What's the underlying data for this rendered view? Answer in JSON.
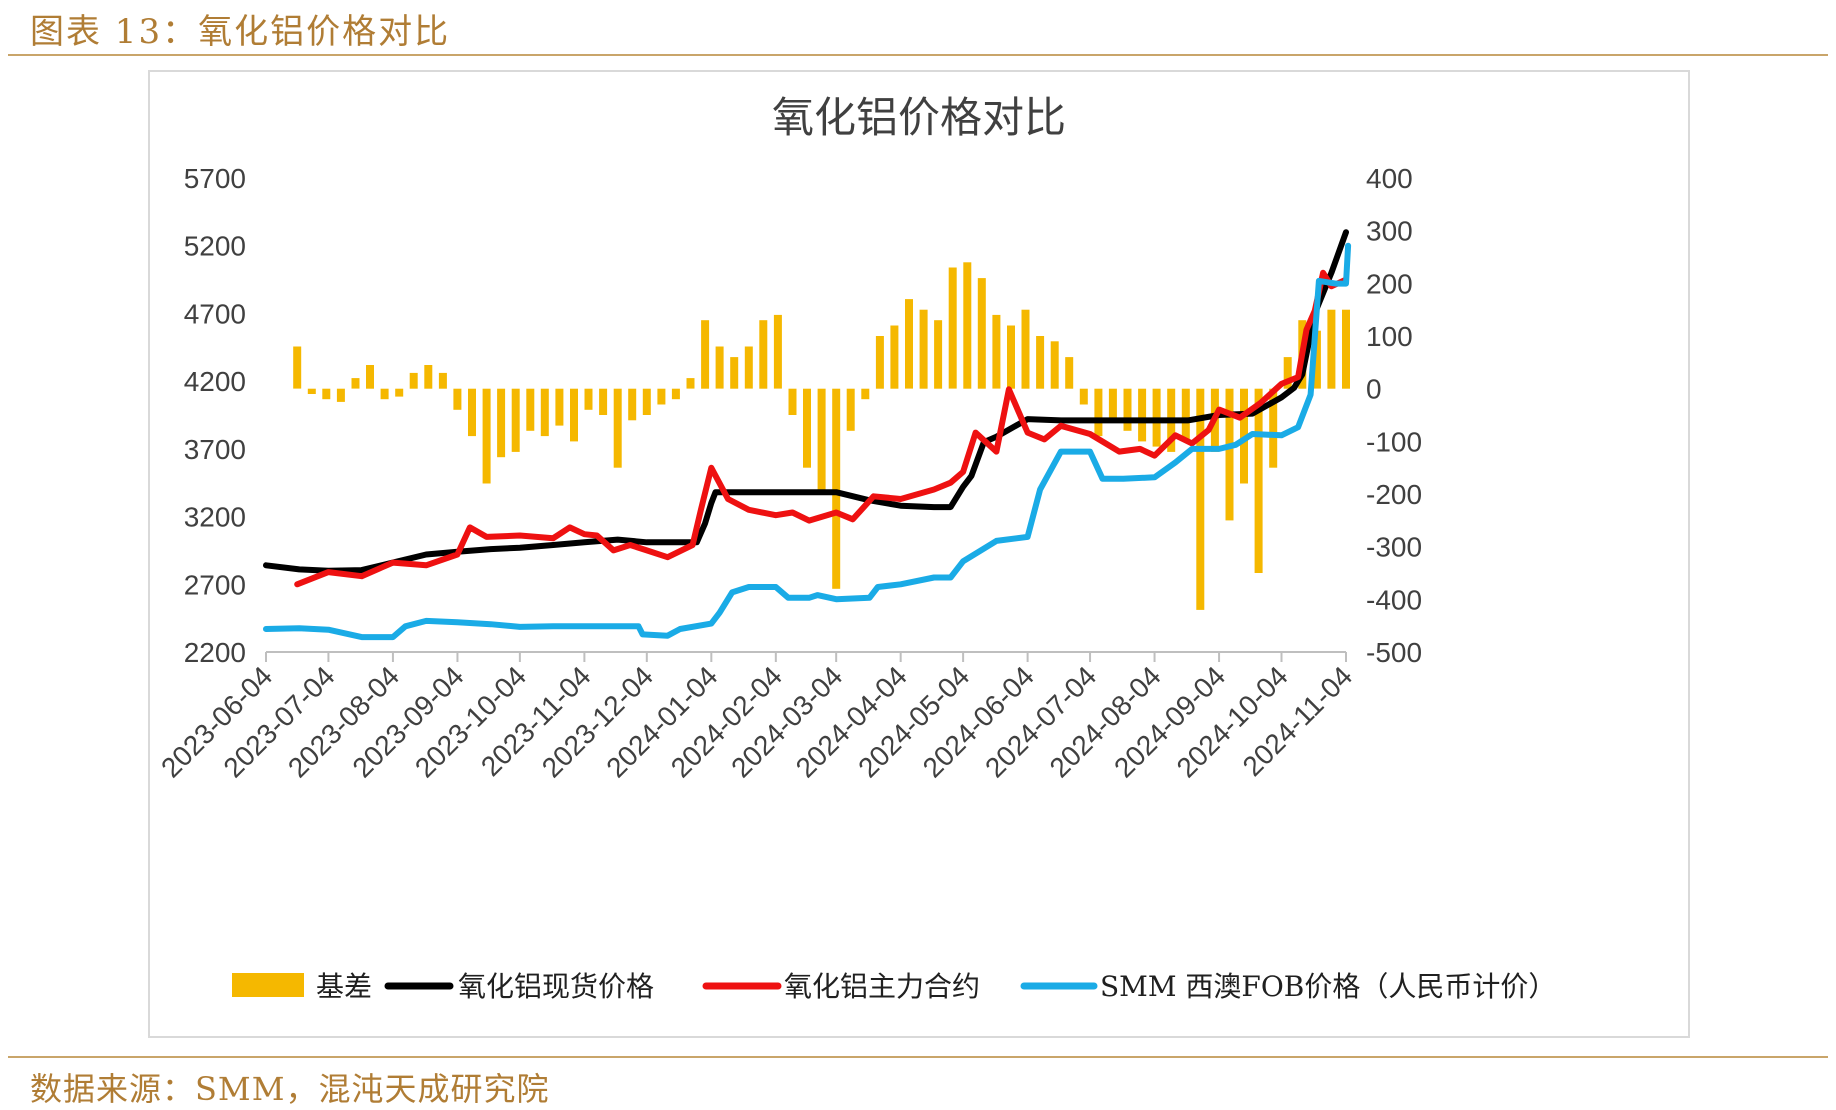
{
  "header": {
    "figure_label": "图表 13：氧化铝价格对比"
  },
  "footer": {
    "source": "数据来源：SMM，混沌天成研究院"
  },
  "colors": {
    "basis": "#f5b800",
    "spot": "#000000",
    "futures": "#ee1111",
    "fob": "#1aabe6",
    "accent": "#b07d35"
  },
  "chart_data": {
    "type": "line",
    "title": "氧化铝价格对比",
    "x_type": "date",
    "x_ticks": [
      "2023-06-04",
      "2023-07-04",
      "2023-08-04",
      "2023-09-04",
      "2023-10-04",
      "2023-11-04",
      "2023-12-04",
      "2024-01-04",
      "2024-02-04",
      "2024-03-04",
      "2024-04-04",
      "2024-05-04",
      "2024-06-04",
      "2024-07-04",
      "2024-08-04",
      "2024-09-04",
      "2024-10-04",
      "2024-11-04"
    ],
    "y_left": {
      "lim": [
        2200,
        5700
      ],
      "ticks": [
        2200,
        2700,
        3200,
        3700,
        4200,
        4700,
        5200,
        5700
      ]
    },
    "y_right": {
      "lim": [
        -500,
        400
      ],
      "ticks": [
        -500,
        -400,
        -300,
        -200,
        -100,
        0,
        100,
        200,
        300,
        400
      ]
    },
    "grid": false,
    "legend_position": "bottom",
    "series": [
      {
        "name": "基差",
        "type": "bar",
        "axis": "right",
        "color": "#f5b800",
        "points": [
          [
            "2023-06-19",
            80
          ],
          [
            "2023-06-26",
            -10
          ],
          [
            "2023-07-03",
            -20
          ],
          [
            "2023-07-10",
            -25
          ],
          [
            "2023-07-17",
            20
          ],
          [
            "2023-07-24",
            45
          ],
          [
            "2023-07-31",
            -20
          ],
          [
            "2023-08-07",
            -15
          ],
          [
            "2023-08-14",
            30
          ],
          [
            "2023-08-21",
            45
          ],
          [
            "2023-08-28",
            30
          ],
          [
            "2023-09-04",
            -40
          ],
          [
            "2023-09-11",
            -90
          ],
          [
            "2023-09-18",
            -180
          ],
          [
            "2023-09-25",
            -130
          ],
          [
            "2023-10-02",
            -120
          ],
          [
            "2023-10-09",
            -80
          ],
          [
            "2023-10-16",
            -90
          ],
          [
            "2023-10-23",
            -70
          ],
          [
            "2023-10-30",
            -100
          ],
          [
            "2023-11-06",
            -40
          ],
          [
            "2023-11-13",
            -50
          ],
          [
            "2023-11-20",
            -150
          ],
          [
            "2023-11-27",
            -60
          ],
          [
            "2023-12-04",
            -50
          ],
          [
            "2023-12-11",
            -30
          ],
          [
            "2023-12-18",
            -20
          ],
          [
            "2023-12-25",
            20
          ],
          [
            "2024-01-01",
            130
          ],
          [
            "2024-01-08",
            80
          ],
          [
            "2024-01-15",
            60
          ],
          [
            "2024-01-22",
            80
          ],
          [
            "2024-01-29",
            130
          ],
          [
            "2024-02-05",
            140
          ],
          [
            "2024-02-12",
            -50
          ],
          [
            "2024-02-19",
            -150
          ],
          [
            "2024-02-26",
            -200
          ],
          [
            "2024-03-04",
            -380
          ],
          [
            "2024-03-11",
            -80
          ],
          [
            "2024-03-18",
            -20
          ],
          [
            "2024-03-25",
            100
          ],
          [
            "2024-04-01",
            120
          ],
          [
            "2024-04-08",
            170
          ],
          [
            "2024-04-15",
            150
          ],
          [
            "2024-04-22",
            130
          ],
          [
            "2024-04-29",
            230
          ],
          [
            "2024-05-06",
            240
          ],
          [
            "2024-05-13",
            210
          ],
          [
            "2024-05-20",
            140
          ],
          [
            "2024-05-27",
            120
          ],
          [
            "2024-06-03",
            150
          ],
          [
            "2024-06-10",
            100
          ],
          [
            "2024-06-17",
            90
          ],
          [
            "2024-06-24",
            60
          ],
          [
            "2024-07-01",
            -30
          ],
          [
            "2024-07-08",
            -90
          ],
          [
            "2024-07-15",
            -60
          ],
          [
            "2024-07-22",
            -80
          ],
          [
            "2024-07-29",
            -100
          ],
          [
            "2024-08-05",
            -110
          ],
          [
            "2024-08-12",
            -120
          ],
          [
            "2024-08-19",
            -100
          ],
          [
            "2024-08-26",
            -420
          ],
          [
            "2024-09-02",
            -120
          ],
          [
            "2024-09-09",
            -250
          ],
          [
            "2024-09-16",
            -180
          ],
          [
            "2024-09-23",
            -350
          ],
          [
            "2024-09-30",
            -150
          ],
          [
            "2024-10-07",
            60
          ],
          [
            "2024-10-14",
            130
          ],
          [
            "2024-10-21",
            110
          ],
          [
            "2024-10-28",
            150
          ],
          [
            "2024-11-04",
            150
          ]
        ]
      },
      {
        "name": "氧化铝现货价格",
        "type": "line",
        "axis": "left",
        "color": "#000000",
        "points": [
          [
            "2023-06-04",
            2840
          ],
          [
            "2023-06-20",
            2810
          ],
          [
            "2023-07-04",
            2800
          ],
          [
            "2023-07-20",
            2805
          ],
          [
            "2023-08-04",
            2860
          ],
          [
            "2023-08-20",
            2920
          ],
          [
            "2023-09-04",
            2940
          ],
          [
            "2023-09-20",
            2960
          ],
          [
            "2023-10-04",
            2970
          ],
          [
            "2023-10-20",
            2990
          ],
          [
            "2023-11-04",
            3010
          ],
          [
            "2023-11-20",
            3030
          ],
          [
            "2023-12-04",
            3010
          ],
          [
            "2023-12-20",
            3010
          ],
          [
            "2023-12-28",
            3010
          ],
          [
            "2024-01-01",
            3150
          ],
          [
            "2024-01-04",
            3300
          ],
          [
            "2024-01-06",
            3380
          ],
          [
            "2024-01-20",
            3380
          ],
          [
            "2024-02-04",
            3380
          ],
          [
            "2024-02-20",
            3380
          ],
          [
            "2024-03-04",
            3380
          ],
          [
            "2024-03-20",
            3320
          ],
          [
            "2024-04-04",
            3280
          ],
          [
            "2024-04-20",
            3270
          ],
          [
            "2024-04-28",
            3270
          ],
          [
            "2024-05-04",
            3420
          ],
          [
            "2024-05-08",
            3500
          ],
          [
            "2024-05-14",
            3750
          ],
          [
            "2024-05-20",
            3790
          ],
          [
            "2024-06-04",
            3920
          ],
          [
            "2024-06-20",
            3910
          ],
          [
            "2024-07-04",
            3910
          ],
          [
            "2024-07-20",
            3910
          ],
          [
            "2024-08-04",
            3910
          ],
          [
            "2024-08-20",
            3910
          ],
          [
            "2024-09-04",
            3950
          ],
          [
            "2024-09-20",
            3960
          ],
          [
            "2024-10-04",
            4080
          ],
          [
            "2024-10-10",
            4150
          ],
          [
            "2024-10-14",
            4250
          ],
          [
            "2024-10-20",
            4700
          ],
          [
            "2024-10-28",
            5000
          ],
          [
            "2024-11-04",
            5300
          ]
        ]
      },
      {
        "name": "氧化铝主力合约",
        "type": "line",
        "axis": "left",
        "color": "#ee1111",
        "points": [
          [
            "2023-06-19",
            2700
          ],
          [
            "2023-07-04",
            2790
          ],
          [
            "2023-07-20",
            2760
          ],
          [
            "2023-08-04",
            2860
          ],
          [
            "2023-08-20",
            2840
          ],
          [
            "2023-09-04",
            2920
          ],
          [
            "2023-09-10",
            3120
          ],
          [
            "2023-09-18",
            3050
          ],
          [
            "2023-10-04",
            3060
          ],
          [
            "2023-10-20",
            3040
          ],
          [
            "2023-10-28",
            3120
          ],
          [
            "2023-11-04",
            3070
          ],
          [
            "2023-11-10",
            3060
          ],
          [
            "2023-11-18",
            2950
          ],
          [
            "2023-11-26",
            2990
          ],
          [
            "2023-12-04",
            2950
          ],
          [
            "2023-12-14",
            2900
          ],
          [
            "2023-12-26",
            2990
          ],
          [
            "2023-12-30",
            3250
          ],
          [
            "2024-01-04",
            3560
          ],
          [
            "2024-01-12",
            3330
          ],
          [
            "2024-01-22",
            3250
          ],
          [
            "2024-02-04",
            3210
          ],
          [
            "2024-02-12",
            3230
          ],
          [
            "2024-02-20",
            3170
          ],
          [
            "2024-03-04",
            3230
          ],
          [
            "2024-03-12",
            3180
          ],
          [
            "2024-03-22",
            3350
          ],
          [
            "2024-04-04",
            3330
          ],
          [
            "2024-04-20",
            3400
          ],
          [
            "2024-04-28",
            3450
          ],
          [
            "2024-05-04",
            3530
          ],
          [
            "2024-05-10",
            3820
          ],
          [
            "2024-05-20",
            3680
          ],
          [
            "2024-05-26",
            4140
          ],
          [
            "2024-06-04",
            3820
          ],
          [
            "2024-06-12",
            3770
          ],
          [
            "2024-06-20",
            3870
          ],
          [
            "2024-07-04",
            3810
          ],
          [
            "2024-07-18",
            3680
          ],
          [
            "2024-07-28",
            3700
          ],
          [
            "2024-08-04",
            3650
          ],
          [
            "2024-08-14",
            3800
          ],
          [
            "2024-08-22",
            3740
          ],
          [
            "2024-08-30",
            3840
          ],
          [
            "2024-09-04",
            3990
          ],
          [
            "2024-09-14",
            3930
          ],
          [
            "2024-09-24",
            4040
          ],
          [
            "2024-10-04",
            4180
          ],
          [
            "2024-10-12",
            4230
          ],
          [
            "2024-10-16",
            4580
          ],
          [
            "2024-10-20",
            4720
          ],
          [
            "2024-10-24",
            5000
          ],
          [
            "2024-10-28",
            4900
          ],
          [
            "2024-11-04",
            4950
          ]
        ]
      },
      {
        "name": "SMM 西澳FOB价格（人民币计价）",
        "type": "line",
        "axis": "left",
        "color": "#1aabe6",
        "points": [
          [
            "2023-06-04",
            2370
          ],
          [
            "2023-06-20",
            2375
          ],
          [
            "2023-07-04",
            2365
          ],
          [
            "2023-07-20",
            2310
          ],
          [
            "2023-08-04",
            2310
          ],
          [
            "2023-08-10",
            2390
          ],
          [
            "2023-08-20",
            2430
          ],
          [
            "2023-09-04",
            2420
          ],
          [
            "2023-09-20",
            2405
          ],
          [
            "2023-10-04",
            2385
          ],
          [
            "2023-10-20",
            2390
          ],
          [
            "2023-11-04",
            2390
          ],
          [
            "2023-11-20",
            2390
          ],
          [
            "2023-11-30",
            2390
          ],
          [
            "2023-12-02",
            2330
          ],
          [
            "2023-12-14",
            2320
          ],
          [
            "2023-12-20",
            2370
          ],
          [
            "2024-01-04",
            2410
          ],
          [
            "2024-01-08",
            2490
          ],
          [
            "2024-01-14",
            2640
          ],
          [
            "2024-01-22",
            2680
          ],
          [
            "2024-02-04",
            2680
          ],
          [
            "2024-02-10",
            2600
          ],
          [
            "2024-02-20",
            2600
          ],
          [
            "2024-02-24",
            2620
          ],
          [
            "2024-03-04",
            2590
          ],
          [
            "2024-03-20",
            2600
          ],
          [
            "2024-03-24",
            2680
          ],
          [
            "2024-04-04",
            2700
          ],
          [
            "2024-04-20",
            2750
          ],
          [
            "2024-04-28",
            2750
          ],
          [
            "2024-05-04",
            2870
          ],
          [
            "2024-05-20",
            3020
          ],
          [
            "2024-06-04",
            3050
          ],
          [
            "2024-06-10",
            3400
          ],
          [
            "2024-06-20",
            3680
          ],
          [
            "2024-07-04",
            3680
          ],
          [
            "2024-07-10",
            3480
          ],
          [
            "2024-07-20",
            3480
          ],
          [
            "2024-08-04",
            3490
          ],
          [
            "2024-08-14",
            3600
          ],
          [
            "2024-08-22",
            3700
          ],
          [
            "2024-09-04",
            3700
          ],
          [
            "2024-09-12",
            3730
          ],
          [
            "2024-09-20",
            3810
          ],
          [
            "2024-10-04",
            3800
          ],
          [
            "2024-10-12",
            3860
          ],
          [
            "2024-10-18",
            4100
          ],
          [
            "2024-10-22",
            4940
          ],
          [
            "2024-10-30",
            4920
          ],
          [
            "2024-11-04",
            4920
          ],
          [
            "2024-11-05",
            5200
          ]
        ]
      }
    ]
  }
}
